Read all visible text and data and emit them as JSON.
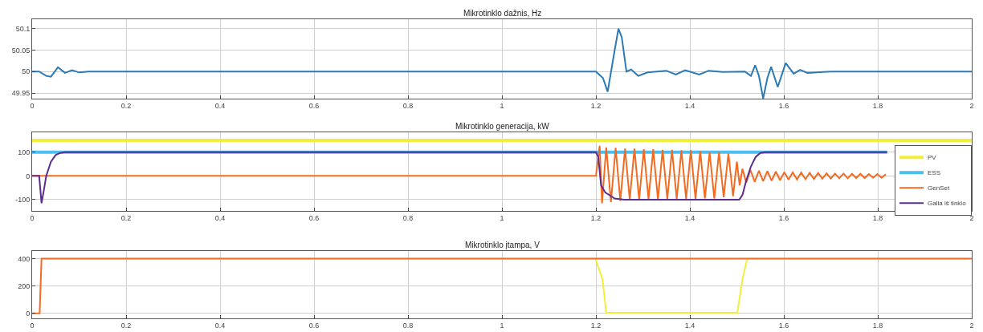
{
  "chart_data": [
    {
      "type": "line",
      "title": "Mikrotinklo dažnis, Hz",
      "xlim": [
        0,
        2
      ],
      "xticks": [
        0,
        0.2,
        0.4,
        0.6,
        0.8,
        1,
        1.2,
        1.4,
        1.6,
        1.8,
        2
      ],
      "ylim": [
        49.937,
        50.122
      ],
      "yticks": [
        49.95,
        50,
        50.05,
        50.1
      ],
      "grid": true,
      "legend": false,
      "series": [
        {
          "color": "#2a7ab8",
          "x": [
            0,
            0.015,
            0.03,
            0.04,
            0.055,
            0.07,
            0.085,
            0.1,
            0.12,
            1.2,
            1.215,
            1.225,
            1.24,
            1.248,
            1.255,
            1.265,
            1.275,
            1.29,
            1.31,
            1.35,
            1.37,
            1.39,
            1.42,
            1.44,
            1.47,
            1.517,
            1.53,
            1.539,
            1.547,
            1.556,
            1.565,
            1.573,
            1.587,
            1.604,
            1.621,
            1.635,
            1.65,
            1.7,
            2
          ],
          "values": [
            50,
            50,
            49.99,
            49.988,
            50.01,
            49.997,
            50.003,
            49.998,
            50,
            50,
            49.985,
            49.953,
            50.05,
            50.1,
            50.08,
            50.0,
            50.005,
            49.99,
            49.998,
            50.002,
            49.993,
            50.003,
            49.993,
            50.002,
            49.999,
            50,
            49.99,
            50.015,
            49.99,
            49.937,
            49.985,
            50.011,
            49.964,
            50.02,
            49.995,
            50.004,
            49.997,
            50,
            50
          ]
        }
      ]
    },
    {
      "type": "line",
      "title": "Mikrotinklo generacija, kW",
      "xlim": [
        0,
        2
      ],
      "xticks": [
        0,
        0.2,
        0.4,
        0.6,
        0.8,
        1,
        1.2,
        1.4,
        1.6,
        1.8,
        2
      ],
      "ylim": [
        -147,
        183
      ],
      "yticks": [
        -100,
        0,
        100
      ],
      "grid": true,
      "legend": "right",
      "series": [
        {
          "name": "PV",
          "color": "#f2ef3a",
          "x": [
            0,
            2
          ],
          "values": [
            150,
            150
          ]
        },
        {
          "name": "ESS",
          "color": "#4dbeee",
          "x": [
            0,
            1.82
          ],
          "values": [
            100,
            100
          ]
        },
        {
          "name": "GenSet",
          "color": "#f26b21",
          "x": [
            0,
            1.2,
            1.208,
            1.213,
            1.222,
            1.232,
            1.242,
            1.252,
            1.262,
            1.272,
            1.282,
            1.292,
            1.302,
            1.312,
            1.322,
            1.332,
            1.342,
            1.352,
            1.362,
            1.372,
            1.382,
            1.392,
            1.402,
            1.412,
            1.422,
            1.432,
            1.442,
            1.452,
            1.462,
            1.472,
            1.482,
            1.492,
            1.5,
            1.506,
            1.512,
            1.52,
            1.529,
            1.538,
            1.547,
            1.556,
            1.565,
            1.574,
            1.583,
            1.592,
            1.601,
            1.61,
            1.619,
            1.628,
            1.637,
            1.646,
            1.655,
            1.664,
            1.673,
            1.682,
            1.691,
            1.7,
            1.709,
            1.718,
            1.727,
            1.736,
            1.745,
            1.754,
            1.763,
            1.772,
            1.781,
            1.79,
            1.799,
            1.808,
            1.817
          ],
          "values": [
            0,
            0,
            127,
            -115,
            120,
            -110,
            118,
            -105,
            115,
            -100,
            115,
            -100,
            112,
            -98,
            112,
            -98,
            110,
            -97,
            110,
            -97,
            108,
            -96,
            108,
            -96,
            105,
            -95,
            100,
            -95,
            100,
            -90,
            95,
            -85,
            60,
            -40,
            30,
            -28,
            25,
            -25,
            22,
            -22,
            20,
            -20,
            18,
            -18,
            16,
            -16,
            15,
            -15,
            14,
            -14,
            13,
            -13,
            12,
            -12,
            11,
            -11,
            10,
            -10,
            10,
            -10,
            9,
            -9,
            9,
            -9,
            8,
            -8,
            8,
            -8,
            7
          ]
        },
        {
          "name": "Galia iš tinklo",
          "color": "#5b2d8c",
          "x": [
            0,
            0.015,
            0.02,
            0.025,
            0.03,
            0.04,
            0.05,
            0.06,
            0.07,
            1.2,
            1.205,
            1.211,
            1.22,
            1.24,
            1.26,
            1.505,
            1.512,
            1.52,
            1.53,
            1.54,
            1.55,
            1.561,
            1.82
          ],
          "values": [
            0,
            0,
            -115,
            -60,
            0,
            60,
            88,
            97,
            100,
            100,
            80,
            -40,
            -70,
            -95,
            -100,
            -100,
            -80,
            -20,
            40,
            80,
            97,
            100,
            100
          ]
        }
      ]
    },
    {
      "type": "line",
      "title": "Mikrotinklo įtampa, V",
      "xlim": [
        0,
        2
      ],
      "xticks": [
        0,
        0.2,
        0.4,
        0.6,
        0.8,
        1,
        1.2,
        1.4,
        1.6,
        1.8,
        2
      ],
      "ylim": [
        -36,
        455
      ],
      "yticks": [
        0,
        200,
        400
      ],
      "grid": true,
      "legend": false,
      "series": [
        {
          "color": "#f2ef3a",
          "x": [
            1.199,
            1.214,
            1.222,
            1.501,
            1.512,
            1.522
          ],
          "values": [
            400,
            250,
            5,
            5,
            250,
            400
          ]
        },
        {
          "color": "#f26b21",
          "x": [
            0,
            0.016,
            0.02,
            2
          ],
          "values": [
            0,
            0,
            400,
            400
          ]
        }
      ]
    }
  ]
}
